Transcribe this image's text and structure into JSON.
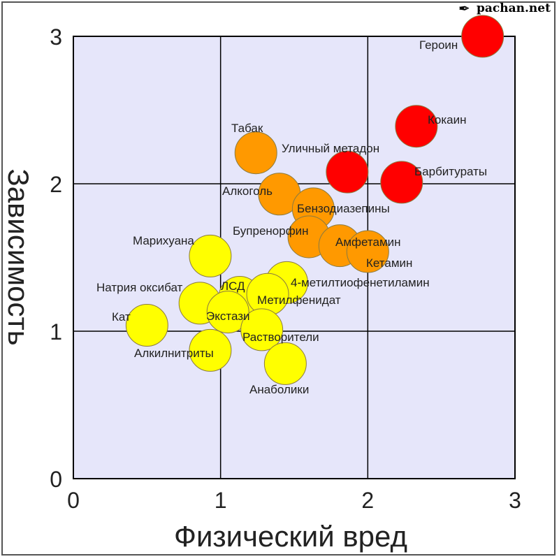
{
  "watermark": "pachan.net",
  "chart_data": {
    "type": "scatter",
    "title": "",
    "xlabel": "Физический вред",
    "ylabel": "Зависимость",
    "xlim": [
      0,
      3
    ],
    "ylim": [
      0,
      3
    ],
    "xticks": [
      "0",
      "1",
      "2",
      "3"
    ],
    "yticks": [
      "0",
      "1",
      "2",
      "3"
    ],
    "grid": true,
    "background": "#e6e6fa",
    "colors": {
      "high": "#ff0000",
      "medium": "#ff9900",
      "low": "#ffff00"
    },
    "points": [
      {
        "label": "Героин",
        "x": 2.78,
        "y": 3.0,
        "group": "high"
      },
      {
        "label": "Кокаин",
        "x": 2.33,
        "y": 2.39,
        "group": "high"
      },
      {
        "label": "Барбитураты",
        "x": 2.23,
        "y": 2.01,
        "group": "high"
      },
      {
        "label": "Уличный метадон",
        "x": 1.86,
        "y": 2.08,
        "group": "high"
      },
      {
        "label": "Табак",
        "x": 1.24,
        "y": 2.21,
        "group": "medium"
      },
      {
        "label": "Алкоголь",
        "x": 1.4,
        "y": 1.93,
        "group": "medium"
      },
      {
        "label": "Бензодиазепины",
        "x": 1.63,
        "y": 1.83,
        "group": "medium"
      },
      {
        "label": "Бупренорфин",
        "x": 1.6,
        "y": 1.64,
        "group": "medium"
      },
      {
        "label": "Амфетамин",
        "x": 1.81,
        "y": 1.58,
        "group": "medium"
      },
      {
        "label": "Кетамин",
        "x": 2.0,
        "y": 1.54,
        "group": "medium"
      },
      {
        "label": "Марихуана",
        "x": 0.93,
        "y": 1.51,
        "group": "low"
      },
      {
        "label": "4-метилтиофенетиламин",
        "x": 1.45,
        "y": 1.33,
        "group": "low"
      },
      {
        "label": "ЛСД",
        "x": 1.13,
        "y": 1.23,
        "group": "low"
      },
      {
        "label": "Метилфенидат",
        "x": 1.32,
        "y": 1.25,
        "group": "low"
      },
      {
        "label": "Натрия оксибат",
        "x": 0.86,
        "y": 1.19,
        "group": "low"
      },
      {
        "label": "Экстази",
        "x": 1.05,
        "y": 1.13,
        "group": "low"
      },
      {
        "label": "Растворители",
        "x": 1.28,
        "y": 1.01,
        "group": "low"
      },
      {
        "label": "Кат",
        "x": 0.5,
        "y": 1.04,
        "group": "low"
      },
      {
        "label": "Алкилнитриты",
        "x": 0.93,
        "y": 0.87,
        "group": "low"
      },
      {
        "label": "Анаболики",
        "x": 1.44,
        "y": 0.78,
        "group": "low"
      }
    ]
  }
}
